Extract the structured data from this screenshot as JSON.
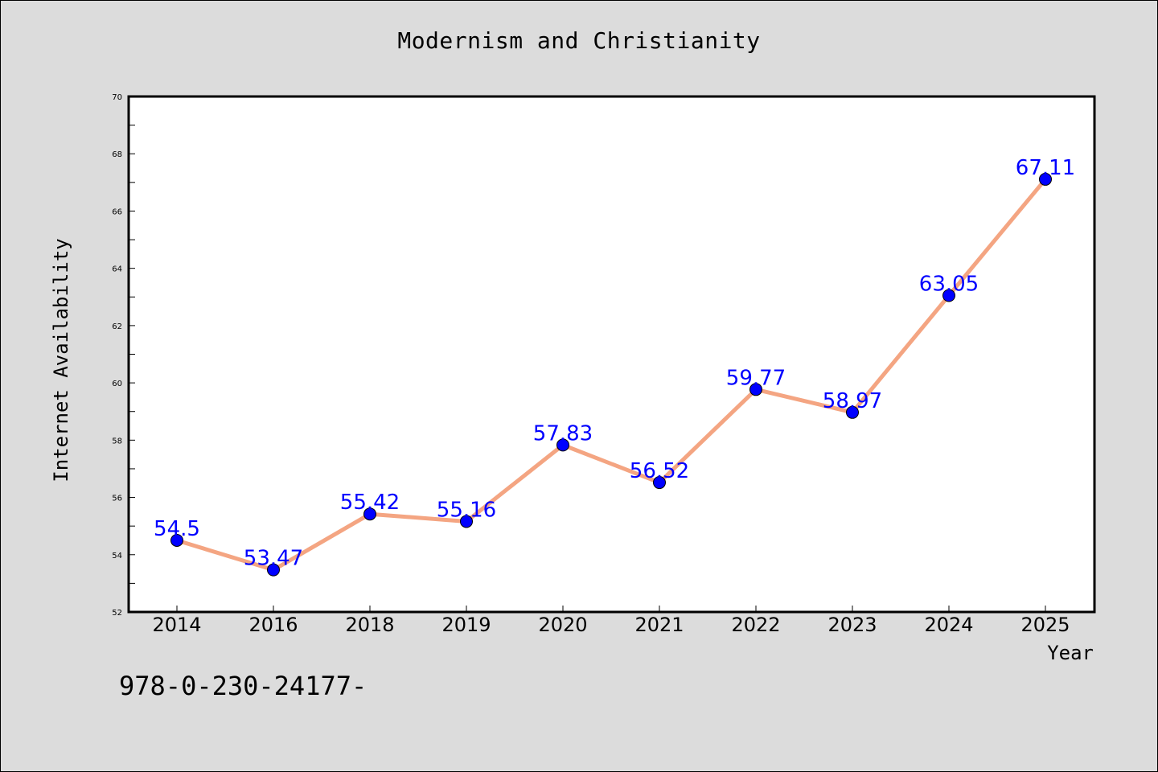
{
  "title": "Modernism and Christianity",
  "footer": "978-0-230-24177-",
  "chart_data": {
    "type": "line",
    "title": "Modernism and Christianity",
    "xlabel": "Year",
    "ylabel": "Internet Availability",
    "categories": [
      "2014",
      "2016",
      "2018",
      "2019",
      "2020",
      "2021",
      "2022",
      "2023",
      "2024",
      "2025"
    ],
    "series": [
      {
        "values": [
          54.5,
          53.47,
          55.42,
          55.16,
          57.83,
          56.52,
          59.77,
          58.97,
          63.05,
          67.11
        ],
        "line_color": "#f4a582",
        "marker_color": "#0000ff"
      }
    ],
    "data_labels": [
      "54.5",
      "53.47",
      "55.42",
      "55.16",
      "57.83",
      "56.52",
      "59.77",
      "58.97",
      "63.05",
      "67.11"
    ],
    "ylim": [
      52,
      70
    ],
    "yticks": [
      "52",
      "54",
      "56",
      "58",
      "60",
      "62",
      "64",
      "66",
      "68",
      "70"
    ],
    "grid": false,
    "legend": "none"
  }
}
